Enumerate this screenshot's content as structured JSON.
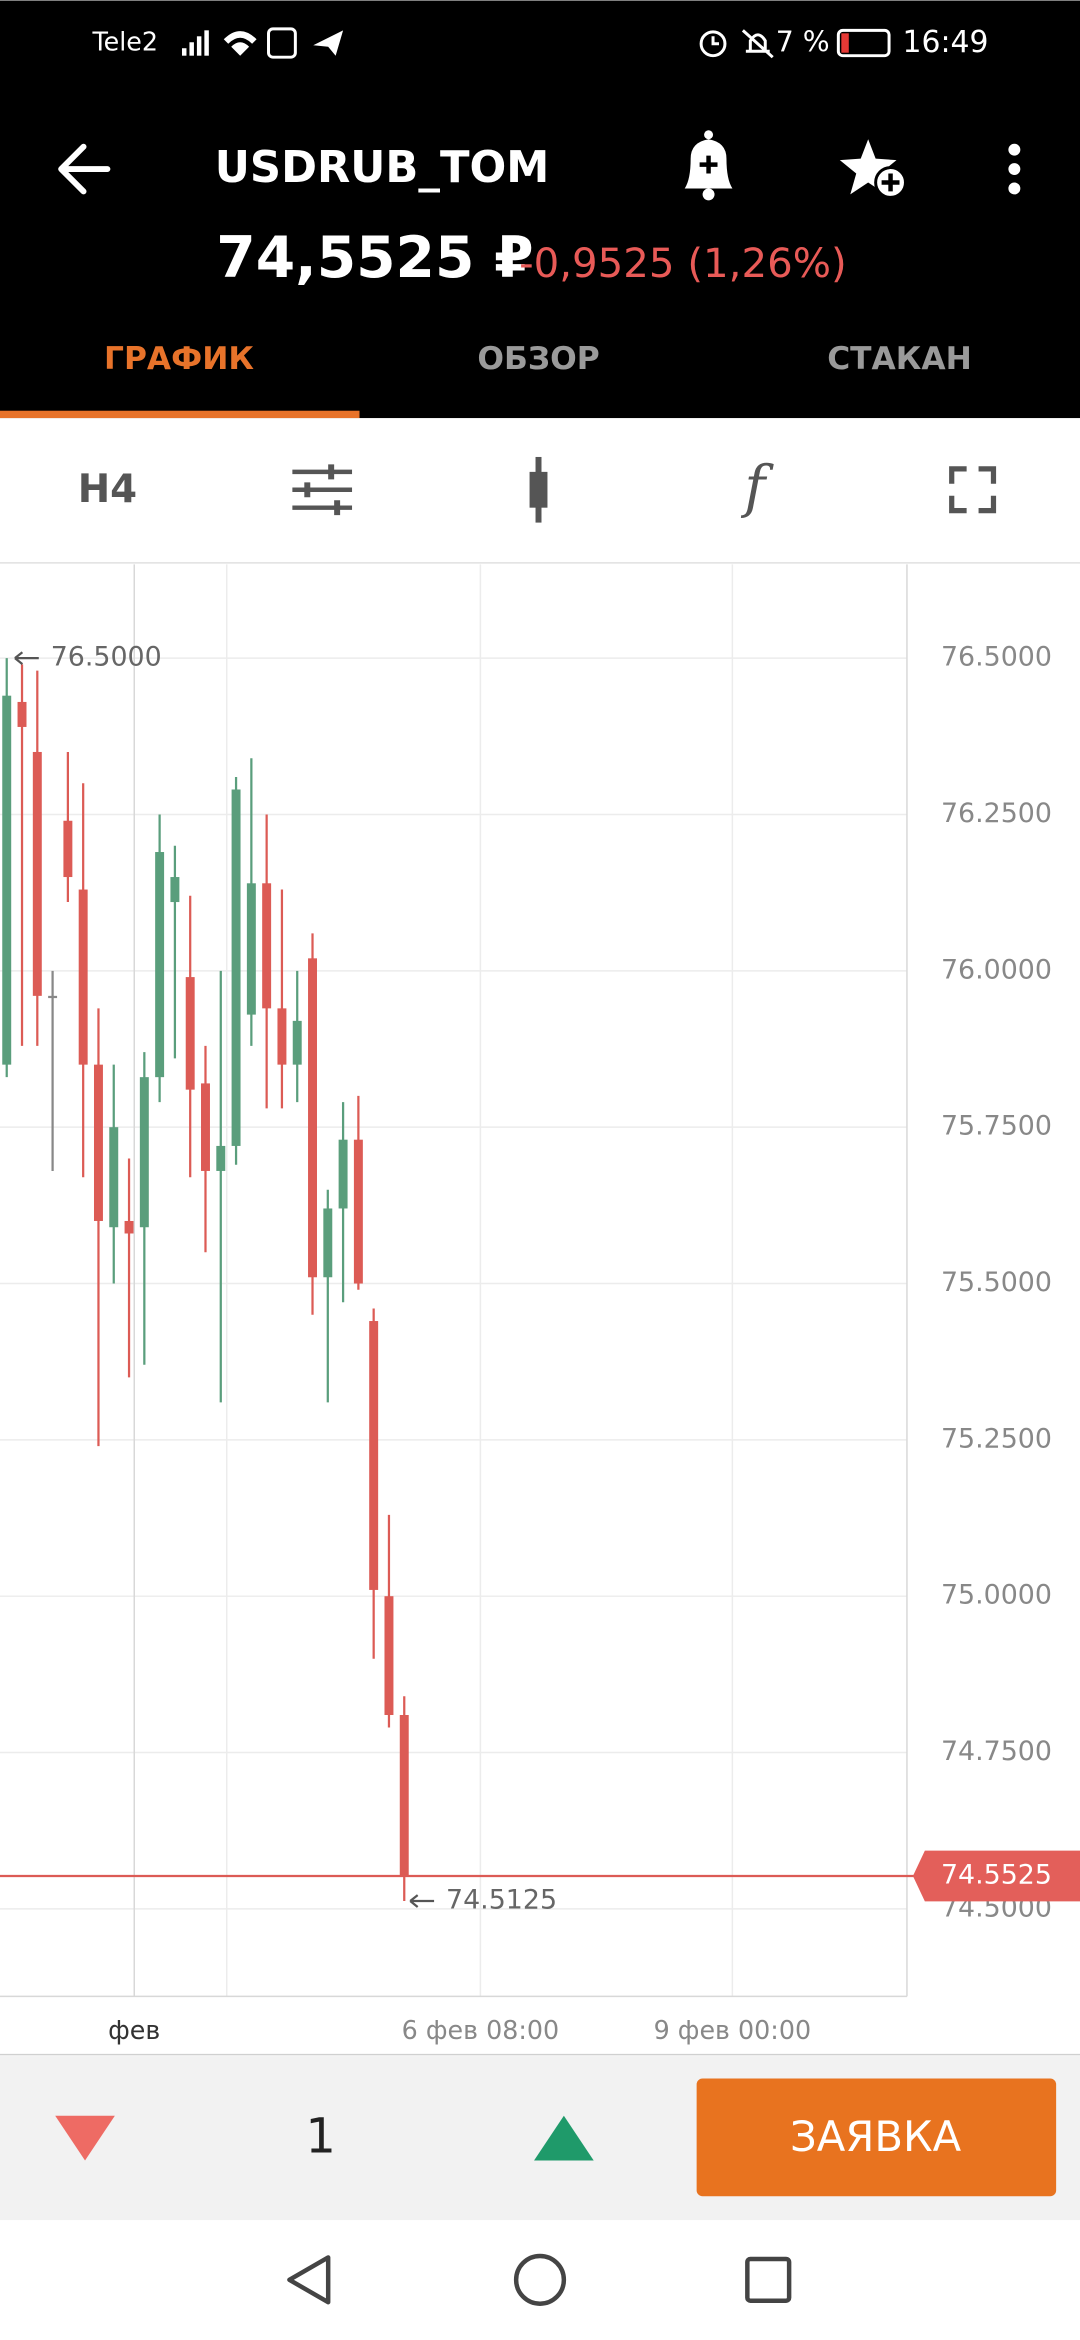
{
  "status_bar": {
    "carrier": "Tele2",
    "battery": "7 %",
    "time": "16:49"
  },
  "header": {
    "symbol": "USDRUB_TOM",
    "price": "74,5525 ₽",
    "change": "-0,9525 (1,26%)"
  },
  "tabs": [
    "ГРАФИК",
    "ОБЗОР",
    "СТАКАН"
  ],
  "toolbar": {
    "timeframe": "H4",
    "function_icon": "f"
  },
  "chart_data": {
    "type": "candlestick",
    "x": [
      0,
      1,
      2,
      3,
      4,
      5,
      6,
      7,
      8,
      9,
      10,
      11,
      12,
      13,
      14,
      15,
      16,
      17,
      18,
      19,
      20,
      21,
      22,
      23,
      24,
      25,
      26
    ],
    "series": [
      {
        "open": [
          75.85,
          76.43,
          76.35,
          75.96,
          76.24,
          76.13,
          75.85,
          75.59,
          75.6,
          75.59,
          75.83,
          76.11,
          75.99,
          75.82,
          75.68,
          75.72,
          75.93,
          76.14,
          75.94,
          75.85,
          76.02,
          75.51,
          75.62,
          75.73,
          75.44,
          75.0,
          74.81
        ],
        "high": [
          76.5,
          76.49,
          76.48,
          76.0,
          76.35,
          76.3,
          75.94,
          75.85,
          75.7,
          75.87,
          76.25,
          76.2,
          76.12,
          75.88,
          76.0,
          76.31,
          76.34,
          76.25,
          76.13,
          76.0,
          76.06,
          75.65,
          75.79,
          75.8,
          75.46,
          75.13,
          74.84
        ],
        "low": [
          75.83,
          75.88,
          75.88,
          75.68,
          76.11,
          75.67,
          75.24,
          75.5,
          75.35,
          75.37,
          75.79,
          75.86,
          75.67,
          75.55,
          75.31,
          75.69,
          75.88,
          75.78,
          75.78,
          75.79,
          75.45,
          75.31,
          75.47,
          75.49,
          74.9,
          74.79,
          74.5125
        ],
        "close": [
          76.44,
          76.39,
          75.96,
          75.96,
          76.15,
          75.85,
          75.6,
          75.75,
          75.58,
          75.83,
          76.19,
          76.15,
          75.81,
          75.68,
          75.72,
          76.29,
          76.14,
          75.94,
          75.85,
          75.92,
          75.51,
          75.62,
          75.73,
          75.5,
          75.01,
          74.81,
          74.5525
        ]
      }
    ],
    "up_color": "#5a9e7c",
    "down_color": "#dc5b55",
    "flat_color": "#888888",
    "xlim": [
      -0.44,
      58.88
    ],
    "xticks": [
      {
        "value": 8.34,
        "label": "фев"
      },
      {
        "value": 30.98,
        "label": "6 фев 08:00"
      },
      {
        "value": 47.46,
        "label": "9 фев 00:00"
      }
    ],
    "ylim": [
      74.36,
      76.65
    ],
    "yticks": [
      {
        "value": 74.5,
        "label": "74.5000"
      },
      {
        "value": 74.75,
        "label": "74.7500"
      },
      {
        "value": 75,
        "label": "75.0000"
      },
      {
        "value": 75.25,
        "label": "75.2500"
      },
      {
        "value": 75.5,
        "label": "75.5000"
      },
      {
        "value": 75.75,
        "label": "75.7500"
      },
      {
        "value": 76,
        "label": "76.0000"
      },
      {
        "value": 76.25,
        "label": "76.2500"
      },
      {
        "value": 76.5,
        "label": "76.5000"
      }
    ],
    "grid": true,
    "high_marker": {
      "value": 76.5,
      "label": "76.5000"
    },
    "low_marker": {
      "value": 74.5125,
      "label": "74.5125"
    },
    "last_price": {
      "value": 74.5525,
      "label": "74.5525"
    }
  },
  "bottom_bar": {
    "quantity": "1",
    "order_button": "ЗАЯВКА"
  }
}
